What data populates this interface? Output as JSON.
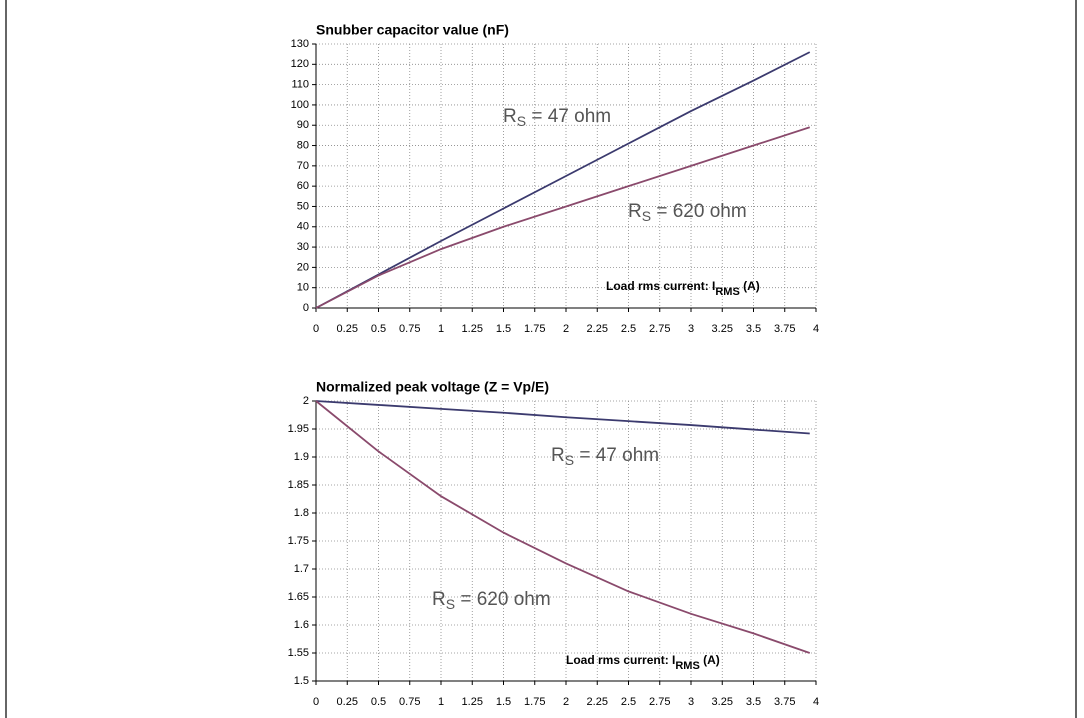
{
  "chart_data": [
    {
      "type": "line",
      "title": "Snubber capacitor value (nF)",
      "x": [
        0,
        0.5,
        1,
        1.5,
        2,
        2.5,
        3,
        3.5,
        3.95
      ],
      "series": [
        {
          "color": "#3b3a6e",
          "values": [
            0,
            16.5,
            33,
            49,
            65,
            81,
            97,
            112,
            126
          ]
        },
        {
          "color": "#8a4a6c",
          "values": [
            0,
            16,
            29,
            40,
            50,
            60,
            70,
            80,
            89
          ]
        }
      ],
      "xlim": [
        0,
        4
      ],
      "xticks": [
        0,
        0.25,
        0.5,
        0.75,
        1,
        1.25,
        1.5,
        1.75,
        2,
        2.25,
        2.5,
        2.75,
        3,
        3.25,
        3.5,
        3.75,
        4
      ],
      "ylim": [
        0,
        130
      ],
      "yticks": [
        0,
        10,
        20,
        30,
        40,
        50,
        60,
        70,
        80,
        90,
        100,
        110,
        120,
        130
      ],
      "grid": true,
      "annotations": [
        {
          "main": "R",
          "sub": "S",
          "tail": " = 47 ohm"
        },
        {
          "main": "R",
          "sub": "S",
          "tail": " = 620 ohm"
        }
      ],
      "xlabel": {
        "main": "Load rms current: I",
        "sub": "RMS",
        "tail": " (A)"
      }
    },
    {
      "type": "line",
      "title": "Normalized peak voltage (Z = Vp/E)",
      "x": [
        0,
        0.5,
        1,
        1.5,
        2,
        2.5,
        3,
        3.5,
        3.95
      ],
      "series": [
        {
          "color": "#3b3a6e",
          "values": [
            2,
            1.993,
            1.986,
            1.979,
            1.971,
            1.964,
            1.957,
            1.949,
            1.942
          ]
        },
        {
          "color": "#8a4a6c",
          "values": [
            2,
            1.91,
            1.83,
            1.765,
            1.71,
            1.66,
            1.62,
            1.585,
            1.55
          ]
        }
      ],
      "xlim": [
        0,
        4
      ],
      "xticks": [
        0,
        0.25,
        0.5,
        0.75,
        1,
        1.25,
        1.5,
        1.75,
        2,
        2.25,
        2.5,
        2.75,
        3,
        3.25,
        3.5,
        3.75,
        4
      ],
      "ylim": [
        1.5,
        2
      ],
      "yticks": [
        1.5,
        1.55,
        1.6,
        1.65,
        1.7,
        1.75,
        1.8,
        1.85,
        1.9,
        1.95,
        2
      ],
      "grid": true,
      "annotations": [
        {
          "main": "R",
          "sub": "S",
          "tail": " = 47 ohm"
        },
        {
          "main": "R",
          "sub": "S",
          "tail": " = 620 ohm"
        }
      ],
      "xlabel": {
        "main": "Load rms current: I",
        "sub": "RMS",
        "tail": " (A)"
      }
    }
  ]
}
